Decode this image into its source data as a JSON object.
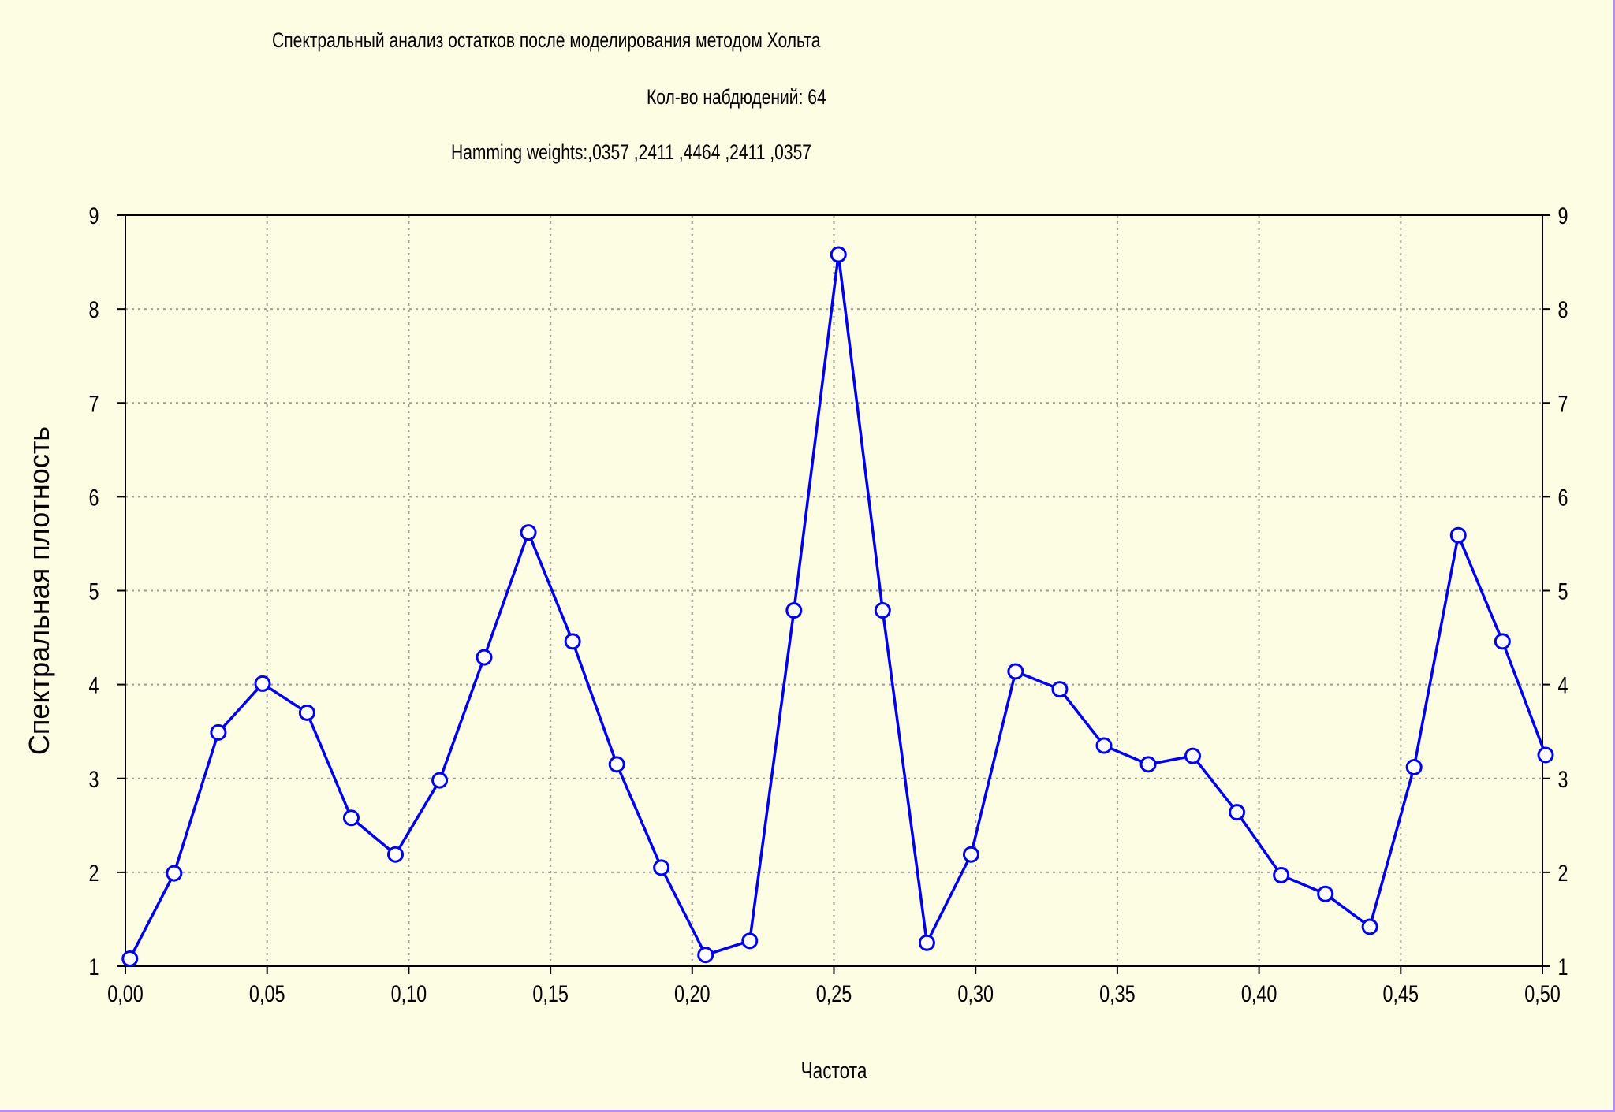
{
  "chart_data": {
    "type": "line",
    "title": "Спектральный анализ остатков после моделирования методом Хольта",
    "subtitle_1": "Кол-во набдюдений: 64",
    "subtitle_2": "Hamming weights:,0357 ,2411 ,4464 ,2411 ,0357",
    "xlabel": "Частота",
    "ylabel": "Спектральная плотность",
    "xlim": [
      0,
      0.5
    ],
    "ylim": [
      1,
      9
    ],
    "x_ticks": [
      "0,00",
      "0,05",
      "0,10",
      "0,15",
      "0,20",
      "0,25",
      "0,30",
      "0,35",
      "0,40",
      "0,45",
      "0,50"
    ],
    "y_ticks": [
      "1",
      "2",
      "3",
      "4",
      "5",
      "6",
      "7",
      "8",
      "9"
    ],
    "grid": true,
    "line_color": "#0000ee",
    "marker": "open-circle",
    "x": [
      0.0016,
      0.0172,
      0.0328,
      0.0484,
      0.0641,
      0.0797,
      0.0953,
      0.1109,
      0.1266,
      0.1422,
      0.1578,
      0.1734,
      0.1891,
      0.2047,
      0.2203,
      0.2359,
      0.2516,
      0.2672,
      0.2828,
      0.2984,
      0.3141,
      0.3297,
      0.3453,
      0.3609,
      0.3766,
      0.3922,
      0.4078,
      0.4234,
      0.4391,
      0.4547,
      0.4703,
      0.4859,
      0.5016
    ],
    "series": [
      {
        "values": [
          1.08,
          1.99,
          3.49,
          4.01,
          3.7,
          2.58,
          2.19,
          2.98,
          4.29,
          5.62,
          4.46,
          3.15,
          2.05,
          1.12,
          1.27,
          4.79,
          8.58,
          4.79,
          1.25,
          2.19,
          4.14,
          3.95,
          3.35,
          3.15,
          3.24,
          2.64,
          1.97,
          1.77,
          1.42,
          3.12,
          5.59,
          4.46,
          3.25
        ]
      }
    ]
  }
}
